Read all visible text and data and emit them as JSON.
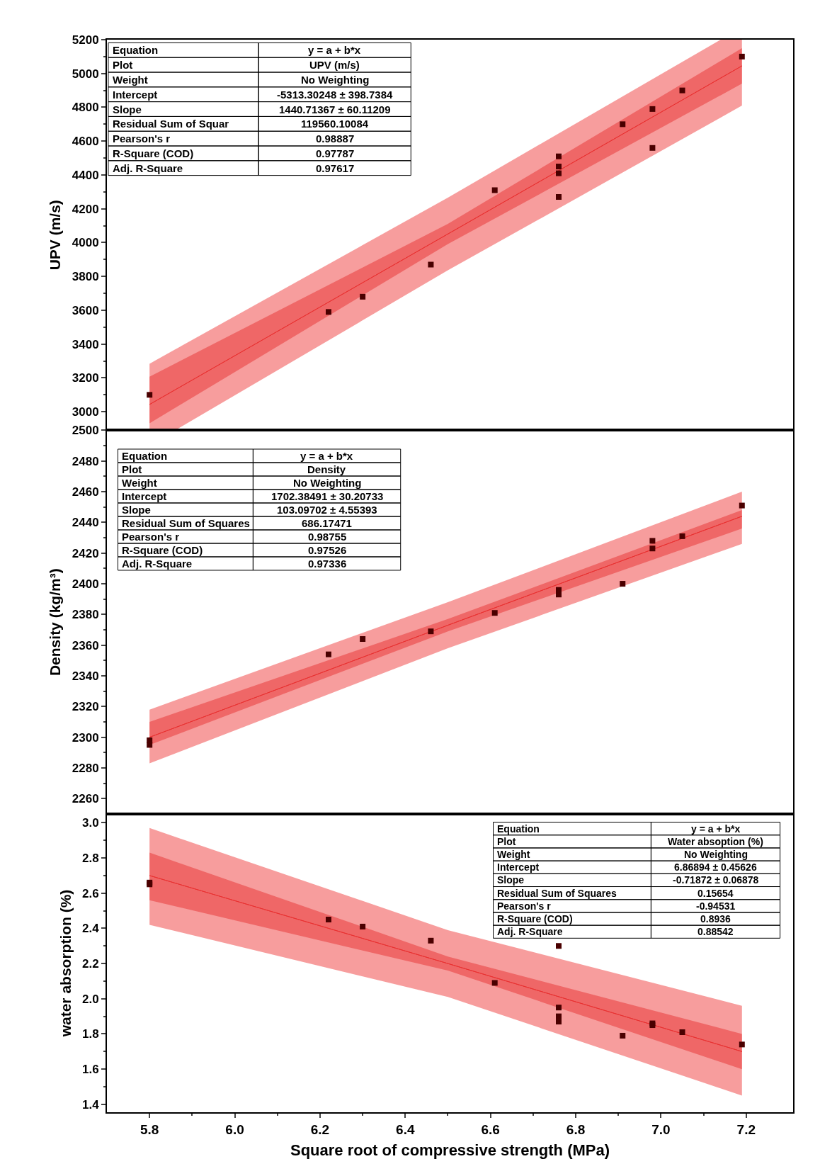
{
  "chart_data": [
    {
      "type": "scatter",
      "ylabel": "UPV (m/s)",
      "xlim": [
        5.7,
        7.31
      ],
      "ylim": [
        2890,
        5200
      ],
      "yticks": [
        3000,
        3200,
        3400,
        3600,
        3800,
        4000,
        4200,
        4400,
        4600,
        4800,
        5000,
        5200
      ],
      "tick_labels": "y",
      "grid": false,
      "marker": "square",
      "annotations": [
        "Equation",
        "y = a + b*x",
        "Plot",
        "UPV (m/s)",
        "Weight",
        "No Weighting",
        "Intercept",
        "-5313.30248 ± 398.7384",
        "Slope",
        "1440.71367 ± 60.11209",
        "Residual Sum of Squar",
        "119560.10084",
        "Pearson's r",
        "0.98887",
        "R-Square (COD)",
        "0.97787",
        "Adj. R-Square",
        "0.97617"
      ],
      "series": [
        {
          "type": "line",
          "color": "#f03c3c",
          "line_style": "solid",
          "marker": "none",
          "x": [
            5.8,
            5.86,
            6.5,
            7.14,
            7.19
          ],
          "values": [
            3043,
            3130,
            4051,
            4973,
            5045
          ],
          "lower": [
            2890,
            2890,
            3836,
            4739,
            4810
          ],
          "upper": [
            3284,
            3368,
            4266,
            5200,
            5200
          ]
        },
        {
          "type": "line",
          "color": "#e83232",
          "line_style": "solid",
          "marker": "none",
          "x": [
            5.8,
            6.5,
            7.19
          ],
          "values": [
            3043,
            4051,
            5045
          ],
          "lower": [
            2932,
            3991,
            4940
          ],
          "upper": [
            3207,
            4111,
            5150
          ]
        },
        {
          "color": "#4a0000",
          "x": [
            5.8,
            6.22,
            6.3,
            6.46,
            6.61,
            6.76,
            6.76,
            6.76,
            6.76,
            6.91,
            6.98,
            6.98,
            7.05,
            7.19
          ],
          "values": [
            3100,
            3590,
            3680,
            3870,
            4310,
            4510,
            4450,
            4410,
            4270,
            4700,
            4790,
            4560,
            4900,
            5100
          ]
        }
      ]
    },
    {
      "type": "scatter",
      "ylabel": "Density (kg/m³)",
      "xlim": [
        5.7,
        7.31
      ],
      "ylim": [
        2250,
        2500
      ],
      "yticks": [
        2260,
        2280,
        2300,
        2320,
        2340,
        2360,
        2380,
        2400,
        2420,
        2440,
        2460,
        2480,
        2500
      ],
      "tick_labels": "y",
      "grid": false,
      "marker": "square",
      "annotations": [
        "Equation",
        "y = a + b*x",
        "Plot",
        "Density",
        "Weight",
        "No Weighting",
        "Intercept",
        "1702.38491 ± 30.20733",
        "Slope",
        "103.09702 ± 4.55393",
        "Residual Sum of Squares",
        "686.17471",
        "Pearson's r",
        "0.98755",
        "R-Square (COD)",
        "0.97526",
        "Adj. R-Square",
        "0.97336"
      ],
      "series": [
        {
          "type": "line",
          "color": "#f03c3c",
          "line_style": "solid",
          "marker": "none",
          "x": [
            5.8,
            6.5,
            7.19
          ],
          "values": [
            2300,
            2373,
            2444
          ],
          "lower": [
            2283,
            2358,
            2426
          ],
          "upper": [
            2318,
            2388,
            2460
          ]
        },
        {
          "type": "line",
          "color": "#e83232",
          "line_style": "solid",
          "marker": "none",
          "x": [
            5.8,
            6.5,
            7.19
          ],
          "values": [
            2300,
            2373,
            2444
          ],
          "lower": [
            2295,
            2369,
            2436
          ],
          "upper": [
            2310,
            2377,
            2448
          ]
        },
        {
          "color": "#4a0000",
          "x": [
            5.8,
            5.8,
            6.22,
            6.3,
            6.46,
            6.61,
            6.76,
            6.76,
            6.91,
            6.98,
            6.98,
            7.05,
            7.19
          ],
          "values": [
            2298,
            2295,
            2354,
            2364,
            2369,
            2381,
            2396,
            2393,
            2400,
            2428,
            2423,
            2431,
            2451
          ]
        }
      ]
    },
    {
      "type": "scatter",
      "xlabel": "Square root of compressive strength (MPa)",
      "ylabel": "water absorption (%)",
      "xlim": [
        5.7,
        7.31
      ],
      "xticks": [
        5.8,
        {
          "value": 6,
          "label": "6.0"
        },
        6.2,
        6.4,
        6.6,
        6.8,
        {
          "value": 7,
          "label": "7.0"
        },
        7.2
      ],
      "ylim": [
        1.355,
        3.05
      ],
      "yticks": [
        1.4,
        1.6,
        1.8,
        {
          "value": 2,
          "label": "2.0"
        },
        2.2,
        2.4,
        2.6,
        2.8,
        {
          "value": 3,
          "label": "3.0"
        }
      ],
      "grid": false,
      "marker": "square",
      "annotations": [
        "Equation",
        "y = a + b*x",
        "Plot",
        "Water absoption (%)",
        "Weight",
        "No Weighting",
        "Intercept",
        "6.86894 ± 0.45626",
        "Slope",
        "-0.71872 ± 0.06878",
        "Residual Sum of Squares",
        "0.15654",
        "Pearson's r",
        "-0.94531",
        "R-Square (COD)",
        "0.8936",
        "Adj. R-Square",
        "0.88542"
      ],
      "series": [
        {
          "type": "line",
          "color": "#f03c3c",
          "line_style": "solid",
          "marker": "none",
          "x": [
            5.8,
            6.5,
            7.19
          ],
          "values": [
            2.7,
            2.2,
            1.7
          ],
          "lower": [
            2.42,
            2.01,
            1.45
          ],
          "upper": [
            2.97,
            2.39,
            1.96
          ]
        },
        {
          "type": "line",
          "color": "#e83232",
          "line_style": "solid",
          "marker": "none",
          "x": [
            5.8,
            6.5,
            7.19
          ],
          "values": [
            2.7,
            2.2,
            1.7
          ],
          "lower": [
            2.56,
            2.16,
            1.6
          ],
          "upper": [
            2.83,
            2.24,
            1.8
          ]
        },
        {
          "color": "#4a0000",
          "x": [
            5.8,
            5.8,
            6.22,
            6.3,
            6.46,
            6.61,
            6.76,
            6.76,
            6.76,
            6.76,
            6.91,
            6.98,
            6.98,
            7.05,
            7.19
          ],
          "values": [
            2.66,
            2.65,
            2.45,
            2.41,
            2.33,
            2.09,
            2.3,
            1.95,
            1.9,
            1.87,
            1.79,
            1.85,
            1.86,
            1.81,
            1.74
          ]
        }
      ]
    }
  ]
}
